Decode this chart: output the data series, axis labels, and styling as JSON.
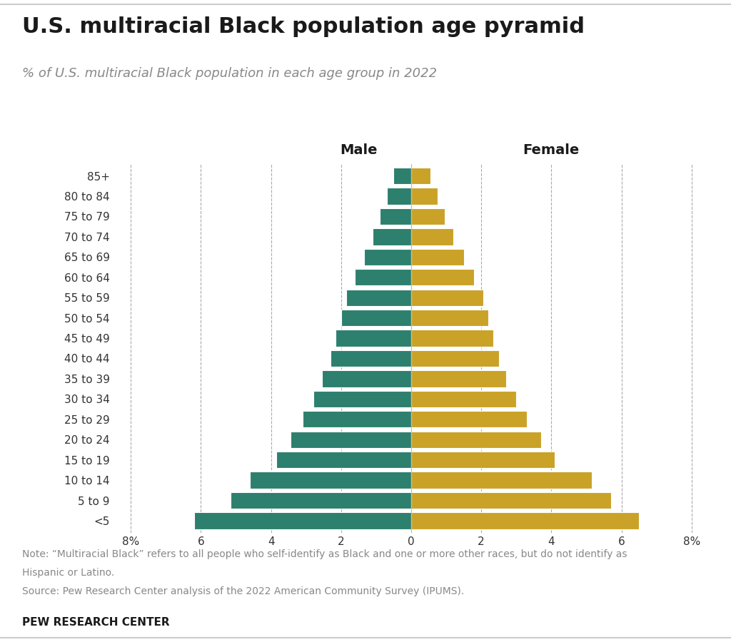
{
  "title": "U.S. multiracial Black population age pyramid",
  "subtitle": "% of U.S. multiracial Black population in each age group in 2022",
  "note1": "Note: “Multiracial Black” refers to all people who self-identify as Black and one or more other races, but do not identify as",
  "note2": "Hispanic or Latino.",
  "note3": "Source: Pew Research Center analysis of the 2022 American Community Survey (IPUMS).",
  "footer": "PEW RESEARCH CENTER",
  "age_groups": [
    "<5",
    "5 to 9",
    "10 to 14",
    "15 to 19",
    "20 to 24",
    "25 to 29",
    "30 to 34",
    "35 to 39",
    "40 to 44",
    "45 to 49",
    "50 to 54",
    "55 to 59",
    "60 to 64",
    "65 to 69",
    "70 to 74",
    "75 to 79",
    "80 to 84",
    "85+"
  ],
  "male": [
    6.2,
    5.15,
    4.6,
    3.85,
    3.45,
    3.1,
    2.8,
    2.55,
    2.3,
    2.15,
    2.0,
    1.85,
    1.6,
    1.35,
    1.1,
    0.9,
    0.7,
    0.5
  ],
  "female": [
    6.5,
    5.7,
    5.15,
    4.1,
    3.7,
    3.3,
    3.0,
    2.7,
    2.5,
    2.35,
    2.2,
    2.05,
    1.8,
    1.5,
    1.2,
    0.95,
    0.75,
    0.55
  ],
  "male_color": "#2d7f6e",
  "female_color": "#c9a227",
  "bar_edge_color": "#ffffff",
  "background_color": "#ffffff",
  "male_label": "Male",
  "female_label": "Female",
  "xlim": 8.5,
  "xticks": [
    -8,
    -6,
    -4,
    -2,
    0,
    2,
    4,
    6,
    8
  ],
  "xtick_labels": [
    "8%",
    "6",
    "4",
    "2",
    "0",
    "2",
    "4",
    "6",
    "8%"
  ],
  "grid_color": "#aaaaaa",
  "title_color": "#1a1a1a",
  "subtitle_color": "#888888",
  "note_color": "#888888",
  "footer_color": "#1a1a1a",
  "title_fontsize": 22,
  "subtitle_fontsize": 13,
  "label_fontsize": 14,
  "tick_fontsize": 11,
  "note_fontsize": 10,
  "footer_fontsize": 11
}
